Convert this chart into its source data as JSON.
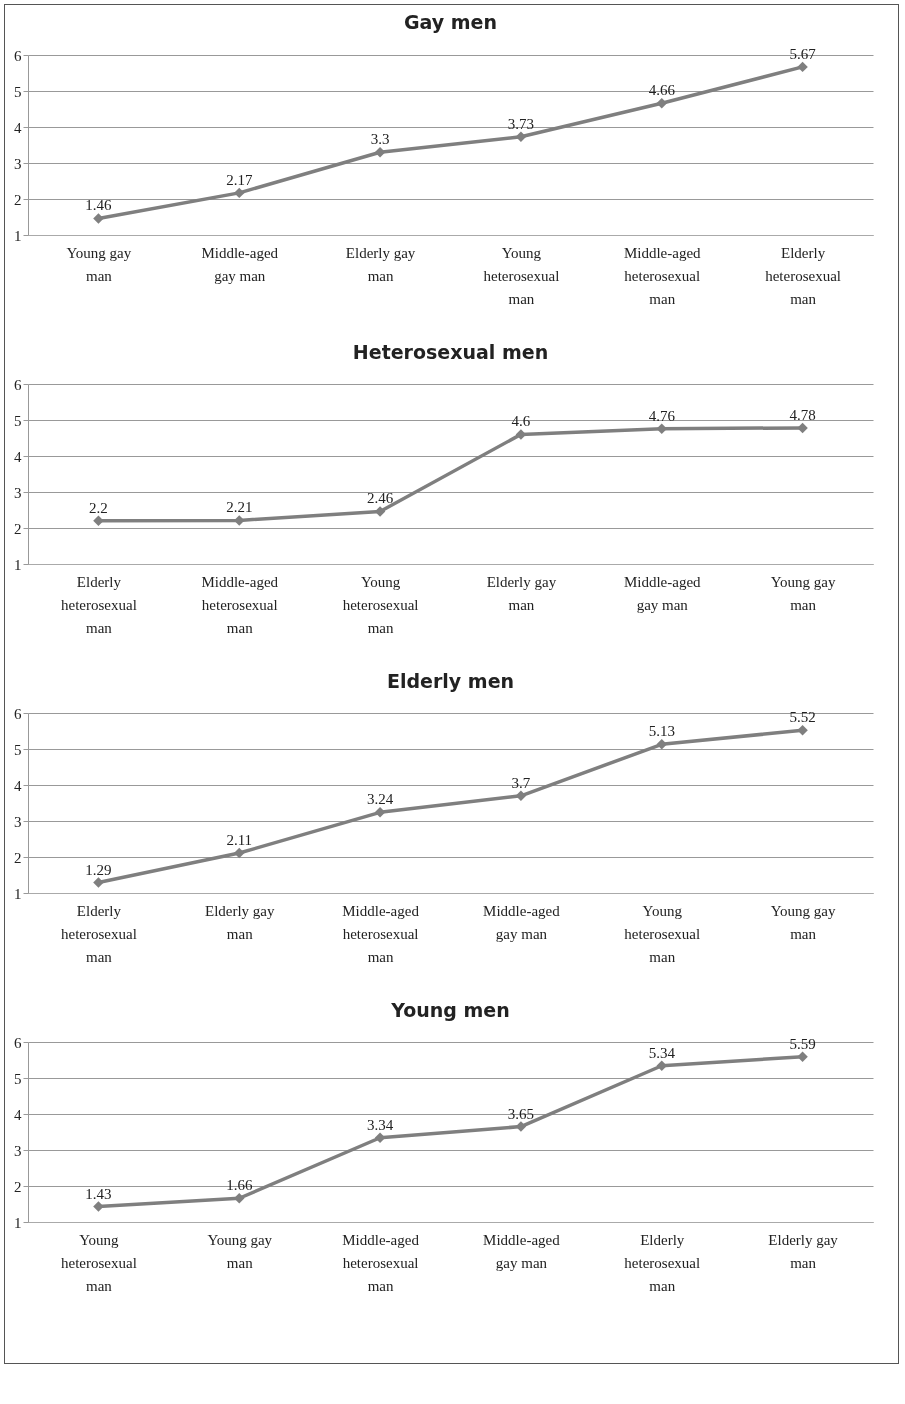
{
  "chart_data": [
    {
      "type": "line",
      "title": "Gay men",
      "categories": [
        "Young gay man",
        "Middle-aged gay man",
        "Elderly gay man",
        "Young heterosexual man",
        "Middle-aged heterosexual man",
        "Elderly heterosexual man"
      ],
      "values": [
        1.46,
        2.17,
        3.3,
        3.73,
        4.66,
        5.67
      ],
      "color": "#7f7f7f",
      "ylim": [
        1,
        6
      ],
      "yticks": [
        1,
        2,
        3,
        4,
        5,
        6
      ],
      "grid": "y",
      "marker": "diamond",
      "data_labels": true
    },
    {
      "type": "line",
      "title": "Heterosexual men",
      "categories": [
        "Elderly heterosexual man",
        "Middle-aged heterosexual man",
        "Young heterosexual man",
        "Elderly gay man",
        "Middle-aged gay man",
        "Young gay man"
      ],
      "values": [
        2.2,
        2.21,
        2.46,
        4.6,
        4.76,
        4.78
      ],
      "color": "#7f7f7f",
      "ylim": [
        1,
        6
      ],
      "yticks": [
        1,
        2,
        3,
        4,
        5,
        6
      ],
      "grid": "y",
      "marker": "diamond",
      "data_labels": true
    },
    {
      "type": "line",
      "title": "Elderly men",
      "categories": [
        "Elderly heterosexual man",
        "Elderly gay man",
        "Middle-aged heterosexual man",
        "Middle-aged gay man",
        "Young heterosexual man",
        "Young gay man"
      ],
      "values": [
        1.29,
        2.11,
        3.24,
        3.7,
        5.13,
        5.52
      ],
      "color": "#7f7f7f",
      "ylim": [
        1,
        6
      ],
      "yticks": [
        1,
        2,
        3,
        4,
        5,
        6
      ],
      "grid": "y",
      "marker": "diamond",
      "data_labels": true
    },
    {
      "type": "line",
      "title": "Young men",
      "categories": [
        "Young heterosexual man",
        "Young gay man",
        "Middle-aged heterosexual man",
        "Middle-aged gay man",
        "Elderly heterosexual man",
        "Elderly gay man"
      ],
      "values": [
        1.43,
        1.66,
        3.34,
        3.65,
        5.34,
        5.59
      ],
      "color": "#7f7f7f",
      "ylim": [
        1,
        6
      ],
      "yticks": [
        1,
        2,
        3,
        4,
        5,
        6
      ],
      "grid": "y",
      "marker": "diamond",
      "data_labels": true
    }
  ]
}
